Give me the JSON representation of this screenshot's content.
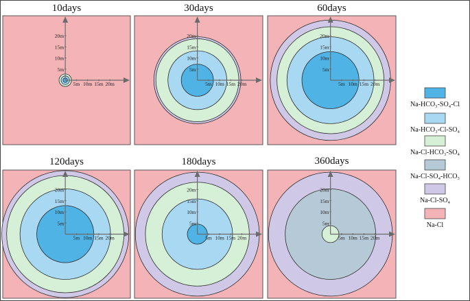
{
  "colors": {
    "Na-HCO3-SO4-Cl": "#4fb3e6",
    "Na-HCO3-Cl-SO4": "#a9d8f3",
    "Na-Cl-HCO3-SO4": "#d6efd7",
    "Na-Cl-SO4-HCO3": "#b5c9d6",
    "Na-Cl-SO4": "#cfc8e6",
    "Na-Cl": "#f4b4b7",
    "axis": "#6b6b6b",
    "ring_stroke": "#2b2b2b"
  },
  "axis_ticks_y": [
    "5m",
    "10m",
    "15m",
    "20m"
  ],
  "axis_ticks_x": [
    "5m",
    "10m",
    "15m",
    "20m"
  ],
  "legend": [
    {
      "key": "Na-HCO3-SO4-Cl",
      "label": "Na-HCO₃-SO₄-Cl"
    },
    {
      "key": "Na-HCO3-Cl-SO4",
      "label": "Na-HCO₃-Cl-SO₄"
    },
    {
      "key": "Na-Cl-HCO3-SO4",
      "label": "Na-Cl-HCO₃-SO₄"
    },
    {
      "key": "Na-Cl-SO4-HCO3",
      "label": "Na-Cl-SO₄-HCO₃"
    },
    {
      "key": "Na-Cl-SO4",
      "label": "Na-Cl-SO₄"
    },
    {
      "key": "Na-Cl",
      "label": "Na-Cl"
    }
  ],
  "panels": [
    {
      "title": "10days",
      "rings": [
        {
          "radius_m": 2.8,
          "zone": "Na-Cl-HCO3-SO4"
        },
        {
          "radius_m": 1.9,
          "zone": "Na-HCO3-Cl-SO4"
        },
        {
          "radius_m": 1.0,
          "zone": "Na-HCO3-SO4-Cl"
        }
      ]
    },
    {
      "title": "30days",
      "rings": [
        {
          "radius_m": 19.5,
          "zone": "Na-Cl-SO4"
        },
        {
          "radius_m": 18.6,
          "zone": "Na-Cl-HCO3-SO4"
        },
        {
          "radius_m": 13.2,
          "zone": "Na-HCO3-Cl-SO4"
        },
        {
          "radius_m": 7.2,
          "zone": "Na-HCO3-SO4-Cl"
        }
      ]
    },
    {
      "title": "60days",
      "rings": [
        {
          "radius_m": 27,
          "zone": "Na-Cl-SO4"
        },
        {
          "radius_m": 24,
          "zone": "Na-Cl-HCO3-SO4"
        },
        {
          "radius_m": 19.5,
          "zone": "Na-HCO3-Cl-SO4"
        },
        {
          "radius_m": 12.8,
          "zone": "Na-HCO3-SO4-Cl"
        }
      ]
    },
    {
      "title": "120days",
      "rings": [
        {
          "radius_m": 28.5,
          "zone": "Na-Cl-SO4"
        },
        {
          "radius_m": 26.3,
          "zone": "Na-Cl-HCO3-SO4"
        },
        {
          "radius_m": 20.3,
          "zone": "Na-HCO3-Cl-SO4"
        },
        {
          "radius_m": 12.8,
          "zone": "Na-HCO3-SO4-Cl"
        }
      ]
    },
    {
      "title": "180days",
      "rings": [
        {
          "radius_m": 27.8,
          "zone": "Na-Cl-SO4"
        },
        {
          "radius_m": 23.3,
          "zone": "Na-Cl-HCO3-SO4"
        },
        {
          "radius_m": 15.8,
          "zone": "Na-HCO3-Cl-SO4"
        },
        {
          "radius_m": 4.5,
          "zone": "Na-HCO3-SO4-Cl"
        }
      ]
    },
    {
      "title": "360days",
      "rings": [
        {
          "radius_m": 27.8,
          "zone": "Na-Cl-SO4"
        },
        {
          "radius_m": 20.3,
          "zone": "Na-Cl-SO4-HCO3"
        },
        {
          "radius_m": 3.8,
          "zone": "Na-Cl-HCO3-SO4"
        }
      ]
    }
  ]
}
